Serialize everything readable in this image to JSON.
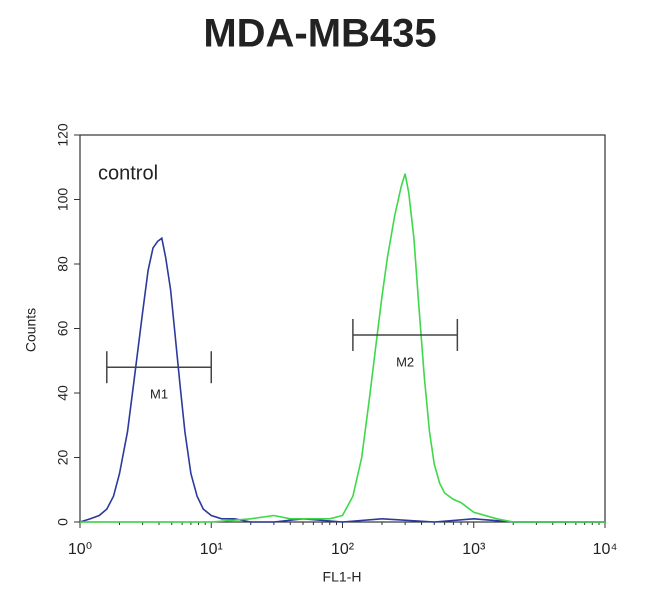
{
  "chart_data": {
    "type": "line",
    "title": "MDA-MB435",
    "xlabel": "FL1-H",
    "ylabel": "Counts",
    "annotation": "control",
    "xscale": "log",
    "xlim": [
      1,
      10000
    ],
    "xticks": [
      {
        "value": 1,
        "label": "10⁰"
      },
      {
        "value": 10,
        "label": "10¹"
      },
      {
        "value": 100,
        "label": "10²"
      },
      {
        "value": 1000,
        "label": "10³"
      },
      {
        "value": 10000,
        "label": "10⁴"
      }
    ],
    "ylim": [
      0,
      120
    ],
    "yticks": [
      0,
      20,
      40,
      60,
      80,
      100,
      120
    ],
    "series": [
      {
        "color": "#2b3a9c",
        "x": [
          1,
          1.2,
          1.4,
          1.6,
          1.8,
          2,
          2.3,
          2.6,
          3,
          3.3,
          3.6,
          3.9,
          4.2,
          4.5,
          4.9,
          5.3,
          5.8,
          6.3,
          7,
          7.8,
          8.7,
          10,
          12,
          15,
          20,
          30,
          50,
          100,
          200,
          500,
          1000,
          2000,
          5000,
          10000
        ],
        "values": [
          0,
          1,
          2,
          4,
          8,
          15,
          28,
          45,
          65,
          78,
          85,
          87,
          88,
          82,
          72,
          58,
          42,
          28,
          15,
          8,
          4,
          2,
          1,
          1,
          0,
          0,
          1,
          0,
          1,
          0,
          1,
          0,
          0,
          0
        ]
      },
      {
        "color": "#3fd84a",
        "x": [
          1,
          10,
          20,
          30,
          40,
          60,
          80,
          100,
          120,
          140,
          160,
          180,
          200,
          220,
          250,
          280,
          300,
          320,
          350,
          380,
          420,
          460,
          500,
          550,
          600,
          700,
          800,
          1000,
          1500,
          2000,
          5000,
          10000
        ],
        "values": [
          0,
          0,
          1,
          2,
          1,
          1,
          1,
          2,
          8,
          20,
          38,
          55,
          70,
          82,
          95,
          104,
          108,
          102,
          88,
          68,
          45,
          28,
          18,
          12,
          9,
          7,
          6,
          3,
          1,
          0,
          0,
          0
        ]
      }
    ],
    "markers": [
      {
        "label": "M1",
        "x": [
          1.6,
          10
        ],
        "y": 48
      },
      {
        "label": "M2",
        "x": [
          120,
          750
        ],
        "y": 58
      }
    ]
  }
}
